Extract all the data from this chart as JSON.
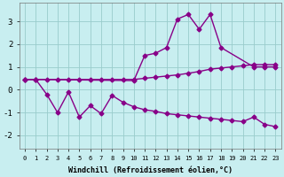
{
  "xlabel": "Windchill (Refroidissement éolien,°C)",
  "bg_color": "#c8eef0",
  "line_color": "#880088",
  "grid_color": "#99cccc",
  "ylim": [
    -2.6,
    3.8
  ],
  "xlim": [
    -0.5,
    23.5
  ],
  "line1_x": [
    0,
    1,
    2,
    3,
    4,
    5,
    6,
    7,
    8,
    9,
    10,
    11,
    12,
    13,
    14,
    15,
    16,
    17,
    18,
    19,
    20,
    21,
    22,
    23
  ],
  "line1_y": [
    0.45,
    0.45,
    0.45,
    0.45,
    0.45,
    0.45,
    0.45,
    0.45,
    0.45,
    0.45,
    0.45,
    0.5,
    0.55,
    0.6,
    0.65,
    0.72,
    0.8,
    0.9,
    0.95,
    1.0,
    1.05,
    1.1,
    1.1,
    1.1
  ],
  "line2_x": [
    0,
    1,
    10,
    11,
    12,
    13,
    14,
    15,
    16,
    17,
    18,
    21,
    22,
    23
  ],
  "line2_y": [
    0.45,
    0.45,
    0.4,
    1.5,
    1.6,
    1.85,
    3.1,
    3.3,
    2.65,
    3.3,
    1.85,
    1.0,
    1.0,
    1.0
  ],
  "line3_x": [
    0,
    1,
    2,
    3,
    4,
    5,
    6,
    7,
    8,
    9,
    10,
    11,
    12,
    13,
    14,
    15,
    16,
    17,
    18,
    19,
    20,
    21,
    22,
    23
  ],
  "line3_y": [
    0.45,
    0.45,
    -0.2,
    -1.0,
    -0.1,
    -1.2,
    -0.7,
    -1.05,
    -0.25,
    -0.55,
    -0.75,
    -0.88,
    -0.95,
    -1.05,
    -1.1,
    -1.15,
    -1.2,
    -1.25,
    -1.3,
    -1.35,
    -1.4,
    -1.2,
    -1.52,
    -1.62
  ]
}
